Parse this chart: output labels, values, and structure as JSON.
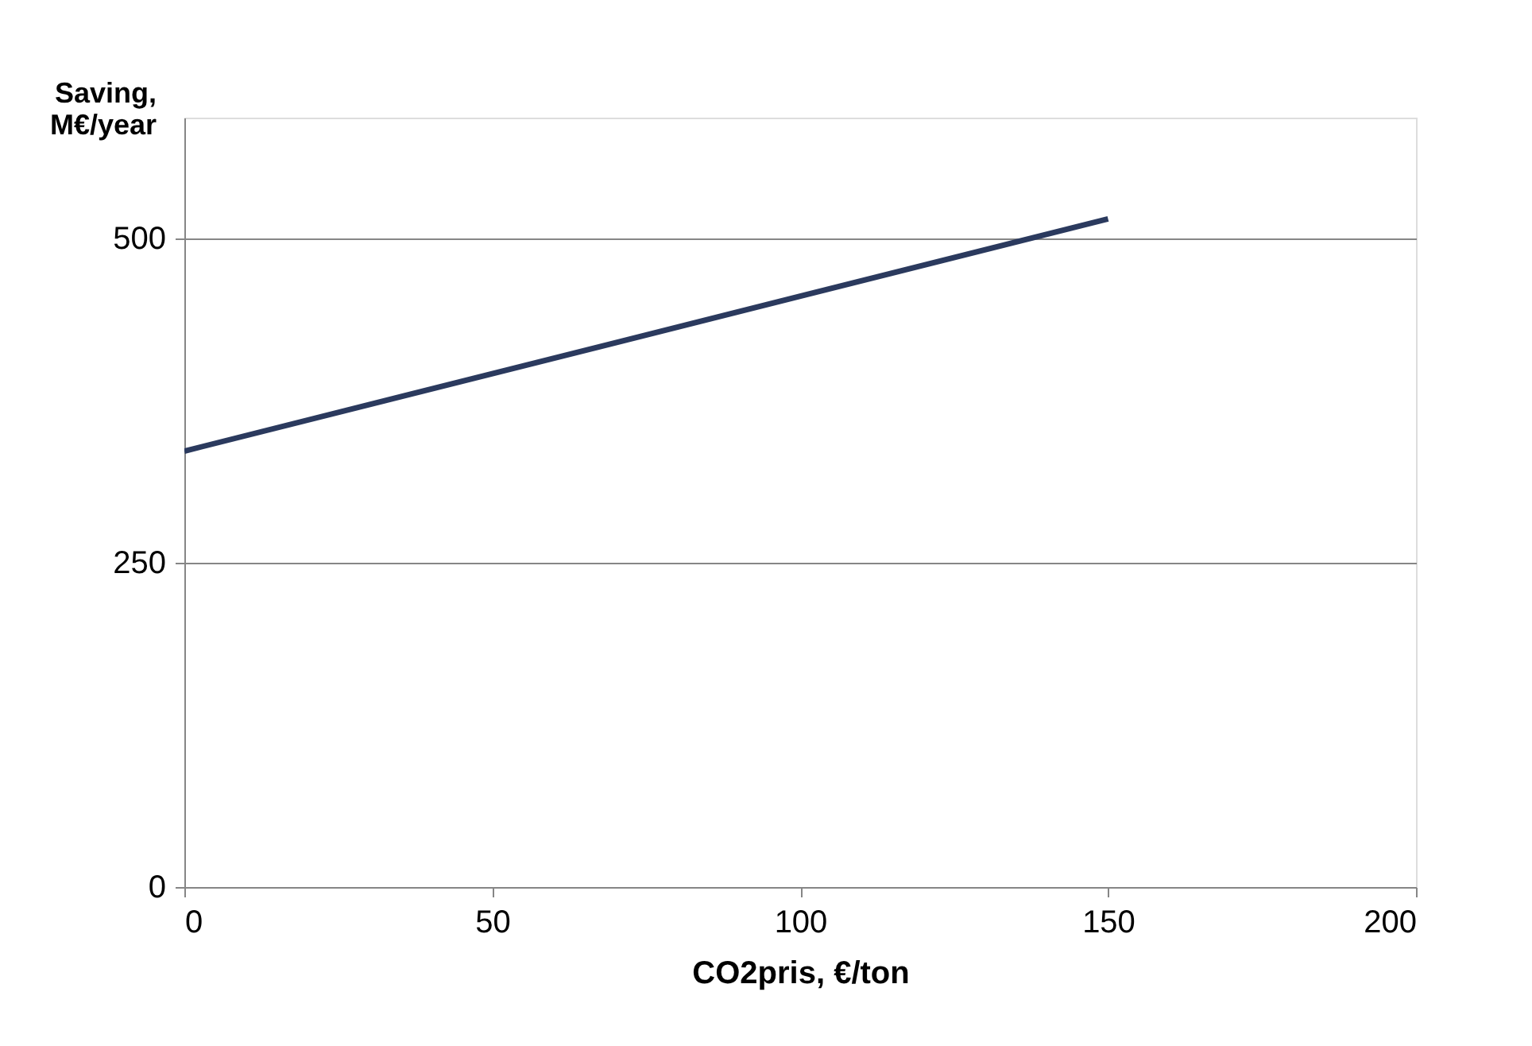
{
  "chart_data": {
    "type": "line",
    "xlabel": "CO2pris, €/ton",
    "ylabel": "Saving,\nM€/year",
    "x": [
      0,
      150
    ],
    "series": [
      {
        "color": "#2b3a5e",
        "values": [
          336,
          515
        ]
      }
    ],
    "xlim": [
      0,
      200
    ],
    "xticks": [
      0,
      50,
      100,
      150,
      200
    ],
    "ylim": [
      0,
      593
    ],
    "yticks": [
      0,
      250,
      500
    ],
    "grid": "y",
    "marker": "none",
    "line_style": "solid"
  }
}
